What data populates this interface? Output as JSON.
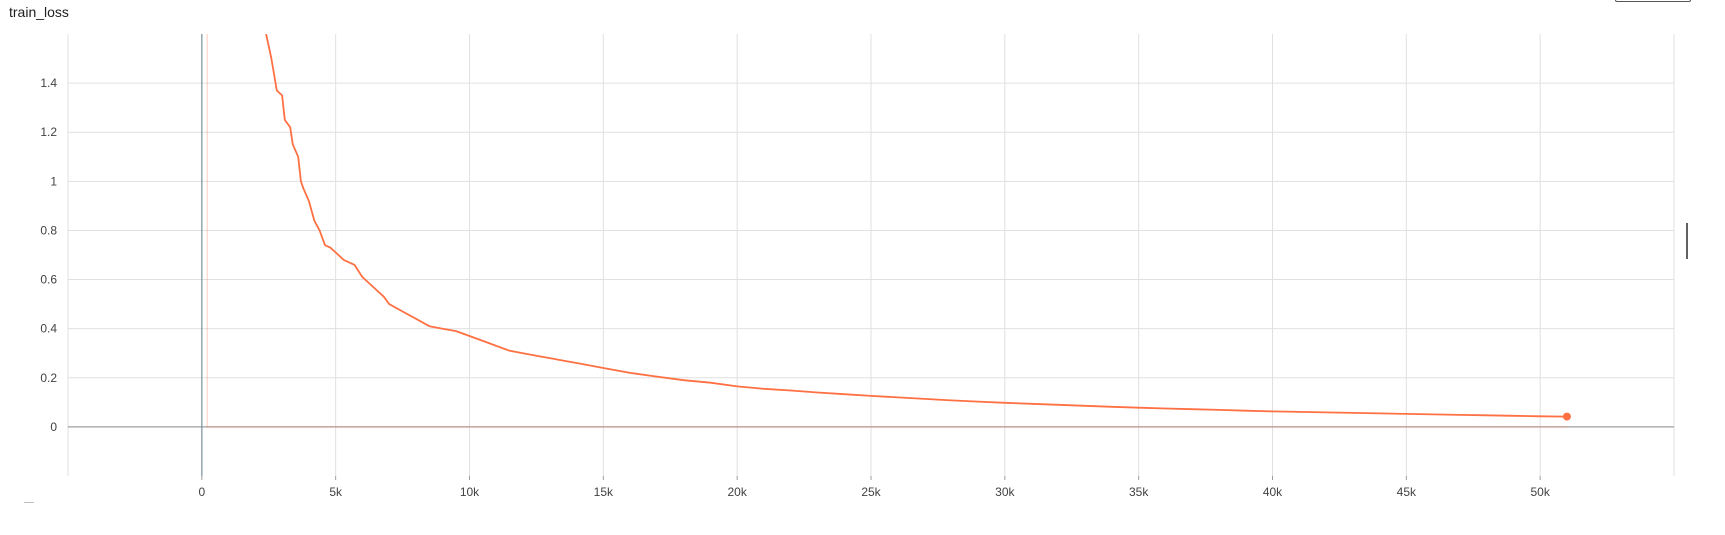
{
  "card": {
    "title": "train_loss"
  },
  "chart_data": {
    "type": "line",
    "title": "train_loss",
    "xlabel": "",
    "ylabel": "",
    "xlim": [
      -5000,
      55000
    ],
    "ylim": [
      -0.2,
      1.6
    ],
    "x_ticks": [
      0,
      5000,
      10000,
      15000,
      20000,
      25000,
      30000,
      35000,
      40000,
      45000,
      50000
    ],
    "x_tick_labels": [
      "0",
      "5k",
      "10k",
      "15k",
      "20k",
      "25k",
      "30k",
      "35k",
      "40k",
      "45k",
      "50k"
    ],
    "y_ticks": [
      0,
      0.2,
      0.4,
      0.6,
      0.8,
      1,
      1.2,
      1.4
    ],
    "y_tick_labels": [
      "0",
      "0.2",
      "0.4",
      "0.6",
      "0.8",
      "1",
      "1.2",
      "1.4"
    ],
    "grid": true,
    "series": [
      {
        "color": "#ff7043",
        "x": [
          2400,
          2600,
          2800,
          3000,
          3100,
          3300,
          3400,
          3600,
          3700,
          3800,
          4000,
          4200,
          4400,
          4600,
          4800,
          5000,
          5300,
          5700,
          6000,
          6200,
          6500,
          6800,
          7000,
          7500,
          8000,
          8500,
          9000,
          9500,
          10000,
          10500,
          11000,
          11500,
          12000,
          12500,
          13000,
          13500,
          14000,
          14500,
          15000,
          16000,
          17000,
          18000,
          19000,
          20000,
          21000,
          22000,
          23000,
          24000,
          25000,
          26000,
          27000,
          28000,
          29000,
          30000,
          31000,
          32000,
          33000,
          34000,
          35000,
          36000,
          37000,
          38000,
          39000,
          40000,
          41000,
          42000,
          43000,
          44000,
          45000,
          46000,
          47000,
          48000,
          49000,
          50000,
          51000
        ],
        "y": [
          1.6,
          1.5,
          1.37,
          1.35,
          1.25,
          1.22,
          1.15,
          1.1,
          1.0,
          0.97,
          0.92,
          0.84,
          0.8,
          0.74,
          0.73,
          0.71,
          0.68,
          0.66,
          0.61,
          0.59,
          0.56,
          0.53,
          0.5,
          0.47,
          0.44,
          0.41,
          0.4,
          0.39,
          0.37,
          0.35,
          0.33,
          0.31,
          0.3,
          0.29,
          0.28,
          0.27,
          0.26,
          0.25,
          0.24,
          0.22,
          0.205,
          0.19,
          0.18,
          0.165,
          0.155,
          0.148,
          0.14,
          0.133,
          0.126,
          0.12,
          0.114,
          0.108,
          0.103,
          0.098,
          0.094,
          0.09,
          0.086,
          0.082,
          0.078,
          0.075,
          0.072,
          0.069,
          0.066,
          0.063,
          0.061,
          0.059,
          0.057,
          0.055,
          0.053,
          0.051,
          0.049,
          0.047,
          0.045,
          0.043,
          0.042
        ]
      }
    ]
  }
}
